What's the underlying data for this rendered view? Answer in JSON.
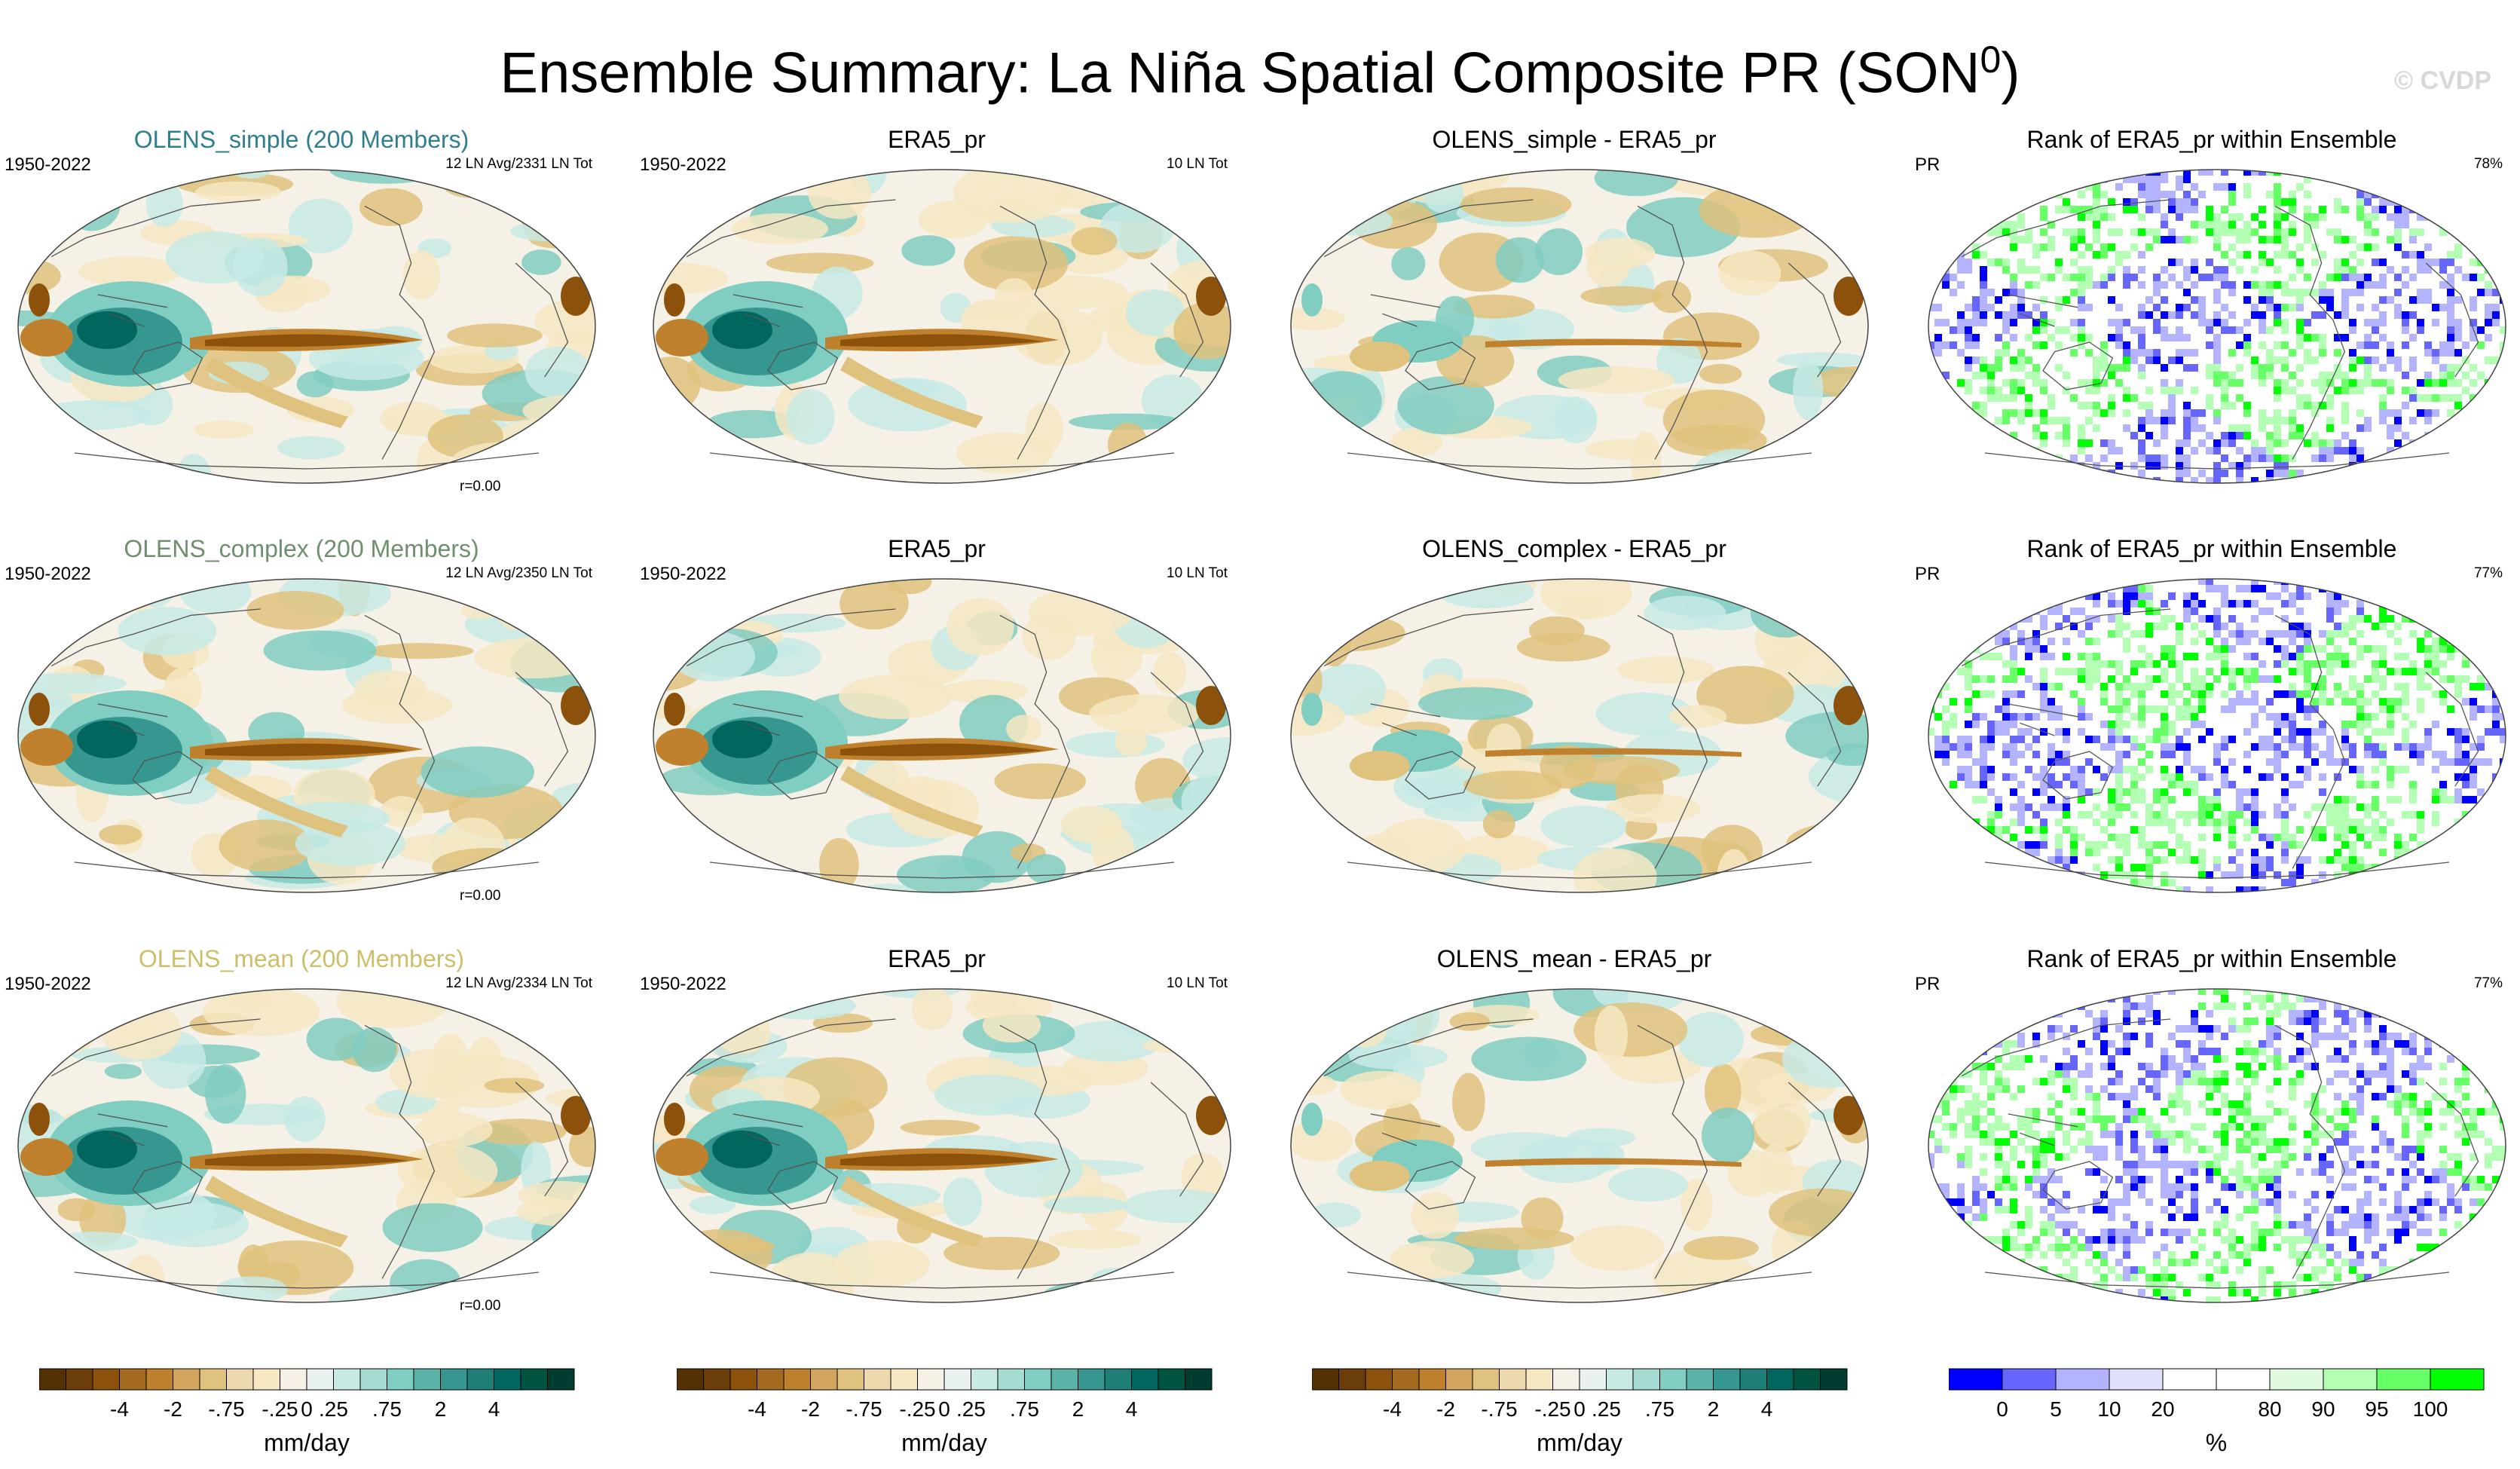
{
  "title": {
    "main": "Ensemble Summary: La Niña Spatial Composite PR (SON",
    "superscript": "0",
    "close": ")"
  },
  "copyright": "© CVDP",
  "rows": [
    {
      "ensemble": {
        "title": "OLENS_simple (200 Members)",
        "color": "#2f7f8f",
        "years": "1950-2022",
        "count": "12 LN Avg/2331 LN Tot",
        "corr": "r=0.00"
      },
      "obs": {
        "title": "ERA5_pr",
        "years": "1950-2022",
        "count": "10 LN Tot"
      },
      "diff": {
        "title": "OLENS_simple - ERA5_pr"
      },
      "rank": {
        "title": "Rank of ERA5_pr within Ensemble",
        "var": "PR",
        "pct": "78%"
      }
    },
    {
      "ensemble": {
        "title": "OLENS_complex (200 Members)",
        "color": "#6f8f6f",
        "years": "1950-2022",
        "count": "12 LN Avg/2350 LN Tot",
        "corr": "r=0.00"
      },
      "obs": {
        "title": "ERA5_pr",
        "years": "1950-2022",
        "count": "10 LN Tot"
      },
      "diff": {
        "title": "OLENS_complex - ERA5_pr"
      },
      "rank": {
        "title": "Rank of ERA5_pr within Ensemble",
        "var": "PR",
        "pct": "77%"
      }
    },
    {
      "ensemble": {
        "title": "OLENS_mean (200 Members)",
        "color": "#cdbf6a",
        "years": "1950-2022",
        "count": "12 LN Avg/2334 LN Tot",
        "corr": "r=0.00"
      },
      "obs": {
        "title": "ERA5_pr",
        "years": "1950-2022",
        "count": "10 LN Tot"
      },
      "diff": {
        "title": "OLENS_mean - ERA5_pr"
      },
      "rank": {
        "title": "Rank of ERA5_pr within Ensemble",
        "var": "PR",
        "pct": "77%"
      }
    }
  ],
  "colorbars": {
    "pr": {
      "colors": [
        "#543005",
        "#6b3d0b",
        "#8c510a",
        "#a36a1f",
        "#bf812d",
        "#d2a55e",
        "#dfc27d",
        "#ecd9ae",
        "#f6e8c3",
        "#f5f1e6",
        "#eaf2f1",
        "#c7eae5",
        "#a5dbd2",
        "#80cdc1",
        "#5bb3a8",
        "#35978f",
        "#1d7f76",
        "#01665e",
        "#01543f",
        "#003c30"
      ],
      "labels": [
        "-4",
        "-2",
        "-.75",
        "-.25",
        "0",
        ".25",
        ".75",
        "2",
        "4"
      ],
      "label_positions": [
        3,
        5,
        7,
        9,
        10,
        11,
        13,
        15,
        17
      ],
      "units": "mm/day"
    },
    "rank": {
      "colors": [
        "#0000ff",
        "#6666ff",
        "#b3b3ff",
        "#e0e0fa",
        "#ffffff",
        "#ffffff",
        "#e0fae0",
        "#b3ffb3",
        "#66ff66",
        "#00ff00"
      ],
      "labels": [
        "0",
        "5",
        "10",
        "20",
        "80",
        "90",
        "95",
        "100"
      ],
      "label_positions": [
        1,
        2,
        3,
        4,
        6,
        7,
        8,
        9
      ],
      "units": "%"
    }
  },
  "palette": {
    "pr_fill": [
      "#8c510a",
      "#bf812d",
      "#dfc27d",
      "#f6e8c3",
      "#f5f1e6",
      "#c7eae5",
      "#80cdc1",
      "#35978f",
      "#01665e"
    ],
    "rank_fill": [
      "#0000ff",
      "#6666ff",
      "#b3b3ff",
      "#ffffff",
      "#b3ffb3",
      "#66ff66",
      "#00ff00"
    ]
  }
}
